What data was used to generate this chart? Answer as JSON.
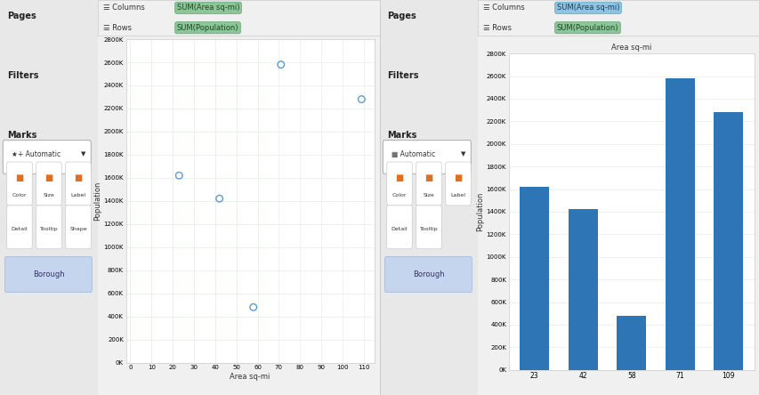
{
  "scatter_points": {
    "x": [
      23,
      42,
      58,
      71,
      109
    ],
    "y": [
      1620000,
      1420000,
      480000,
      2580000,
      2280000
    ]
  },
  "bar_data": {
    "x": [
      "23",
      "42",
      "58",
      "71",
      "109"
    ],
    "y": [
      1620000,
      1420000,
      480000,
      2580000,
      2280000
    ]
  },
  "scatter_color": "#5B9BD5",
  "bar_color": "#2E75B6",
  "sidebar_bg": "#E8E8E8",
  "chart_bg": "#FFFFFF",
  "outer_bg": "#F0F0F0",
  "scatter_xlabel": "Area sq-mi",
  "scatter_ylabel": "Population",
  "bar_ylabel": "Population",
  "bar_title": "Area sq-mi",
  "columns_label": "SUM(Area sq-mi)",
  "rows_label": "SUM(Population)",
  "columns_bg_green": "#8DC49A",
  "columns_bg_blue": "#8DC4E0",
  "rows_bg_green": "#8DC49A",
  "scatter_xlim": [
    -2,
    115
  ],
  "scatter_ylim": [
    0,
    2800000
  ],
  "bar_ylim": [
    0,
    2800000
  ],
  "ytick_vals": [
    0,
    200000,
    400000,
    600000,
    800000,
    1000000,
    1200000,
    1400000,
    1600000,
    1800000,
    2000000,
    2200000,
    2400000,
    2600000,
    2800000
  ],
  "ytick_labels": [
    "0K",
    "200K",
    "400K",
    "600K",
    "800K",
    "1000K",
    "1200K",
    "1400K",
    "1600K",
    "1800K",
    "2000K",
    "2200K",
    "2400K",
    "2600K",
    "2800K"
  ],
  "scatter_xtick_vals": [
    0,
    10,
    20,
    30,
    40,
    50,
    60,
    70,
    80,
    90,
    100,
    110
  ],
  "scatter_xtick_labels": [
    "0",
    "10",
    "20",
    "30",
    "40",
    "50",
    "60",
    "70",
    "80",
    "90",
    "100",
    "110"
  ],
  "pages_label": "Pages",
  "filters_label": "Filters",
  "marks_label": "Marks",
  "borough_label": "Borough",
  "automatic_label": "Automatic",
  "color_label": "Color",
  "size_label": "Size",
  "label_label": "Label",
  "detail_label": "Detail",
  "tooltip_label": "Tooltip",
  "shape_label": "Shape"
}
